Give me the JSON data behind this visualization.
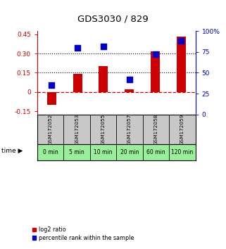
{
  "title": "GDS3030 / 829",
  "samples": [
    "GSM172052",
    "GSM172053",
    "GSM172055",
    "GSM172057",
    "GSM172058",
    "GSM172059"
  ],
  "time_labels": [
    "0 min",
    "5 min",
    "10 min",
    "20 min",
    "60 min",
    "120 min"
  ],
  "log2_ratio": [
    -0.1,
    0.14,
    0.2,
    0.02,
    0.32,
    0.43
  ],
  "percentile_rank": [
    35,
    80,
    82,
    42,
    72,
    88
  ],
  "ylim_left": [
    -0.175,
    0.475
  ],
  "ylim_right": [
    0,
    100
  ],
  "yticks_left": [
    -0.15,
    0,
    0.15,
    0.3,
    0.45
  ],
  "yticks_right": [
    0,
    25,
    50,
    75,
    100
  ],
  "ytick_labels_left": [
    "-0.15",
    "0",
    "0.15",
    "0.30",
    "0.45"
  ],
  "ytick_labels_right": [
    "0",
    "25",
    "50",
    "75",
    "100%"
  ],
  "hline_dotted": [
    0.15,
    0.3
  ],
  "hline_dashed_red": 0,
  "bar_color": "#cc0000",
  "dot_color": "#0000cc",
  "bar_width": 0.35,
  "dot_size": 30,
  "gray_bg": "#c8c8c8",
  "green_bg": "#99ee99",
  "left_axis_color": "#cc0000",
  "right_axis_color": "#0000cc",
  "legend_bar_label": "log2 ratio",
  "legend_dot_label": "percentile rank within the sample",
  "fig_width": 3.21,
  "fig_height": 3.54,
  "dpi": 100
}
